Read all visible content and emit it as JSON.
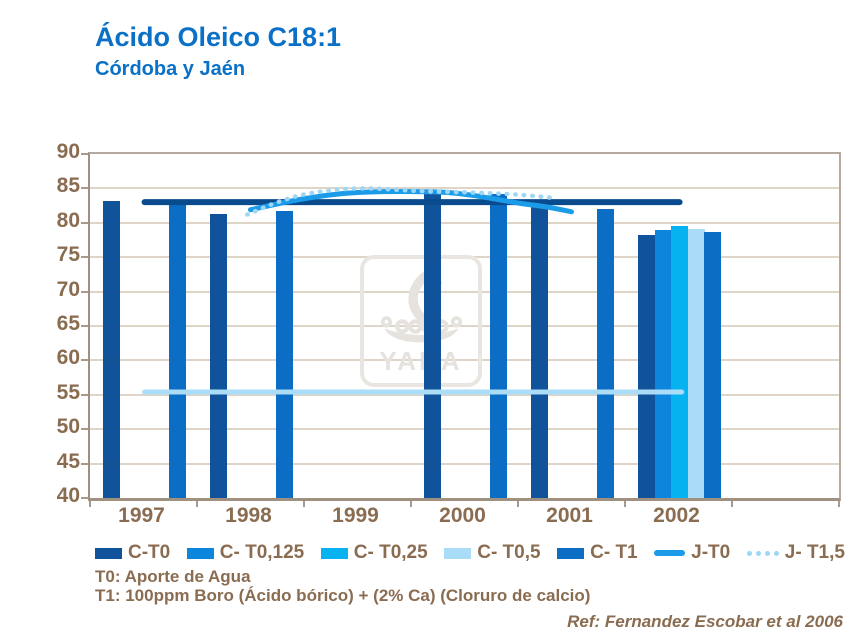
{
  "header": {
    "title": "Ácido Oleico C18:1",
    "subtitle": "Córdoba y Jaén"
  },
  "watermark": {
    "label": "YARA"
  },
  "footnotes": {
    "line1": "T0: Aporte de Agua",
    "line2": "T1: 100ppm Boro (Ácido bórico) + (2% Ca) (Cloruro de calcio)"
  },
  "reference_text": "Ref: Fernandez Escobar et al 2006",
  "colors": {
    "title_blue": "#0a71c6",
    "text_brown": "#8a6c51",
    "axis": "#a0907f",
    "grid": "#ded4c8"
  },
  "chart_data": {
    "type": "bar",
    "title": "Ácido Oleico C18:1",
    "subtitle": "Córdoba y Jaén",
    "categories": [
      "1997",
      "1998",
      "1999",
      "2000",
      "2001",
      "2002"
    ],
    "ylim": [
      40,
      90
    ],
    "y_ticks": [
      90,
      85,
      80,
      75,
      70,
      65,
      60,
      55,
      50,
      45,
      40
    ],
    "grid": true,
    "legend_position": "bottom",
    "series": [
      {
        "name": "C-T0",
        "type": "bar",
        "slot": 0,
        "color": "#10539a",
        "values": {
          "1997": 83.1,
          "1998": 81.3,
          "2000": 84.5,
          "2001": 82.4,
          "2002": 78.2
        }
      },
      {
        "name": "C- T0,125",
        "type": "bar",
        "slot": 1,
        "color": "#0c86dd",
        "values": {
          "2002": 78.9
        }
      },
      {
        "name": "C- T0,25",
        "type": "bar",
        "slot": 2,
        "color": "#06b2ef",
        "values": {
          "2002": 79.5
        }
      },
      {
        "name": "C- T0,5",
        "type": "bar",
        "slot": 3,
        "color": "#a9dcf7",
        "values": {
          "2002": 79.1
        }
      },
      {
        "name": "C- T1",
        "type": "bar",
        "slot": 4,
        "color": "#0c6dc4",
        "values": {
          "1997": 83.0,
          "1998": 81.7,
          "2000": 84.2,
          "2001": 82.0,
          "2002": 78.6
        }
      },
      {
        "name": "J-T0",
        "type": "line",
        "style": "solid",
        "color": "#1c9ce8",
        "stroke": 5,
        "points": [
          [
            1998.0,
            81.9
          ],
          [
            1998.5,
            83.5
          ],
          [
            1999.0,
            84.4
          ],
          [
            1999.7,
            84.5
          ],
          [
            2000.07,
            84.0
          ],
          [
            2000.49,
            82.9
          ],
          [
            2000.77,
            82.3
          ],
          [
            2001.0,
            81.6
          ]
        ]
      },
      {
        "name": "J- T1,5",
        "type": "line",
        "style": "dotted",
        "color": "#9ed7f5",
        "stroke": 4.5,
        "points": [
          [
            1997.97,
            81.2
          ],
          [
            1998.29,
            83.2
          ],
          [
            1998.6,
            84.4
          ],
          [
            1999.04,
            85.0
          ],
          [
            1999.6,
            84.6
          ],
          [
            2000.07,
            84.4
          ],
          [
            2000.49,
            84.1
          ],
          [
            2000.84,
            83.6
          ]
        ]
      }
    ],
    "reference_lines": [
      {
        "value": 83.0,
        "color": "#0a4b8e",
        "stroke": 6,
        "x_from": 1997.01,
        "x_to": 2002.01
      },
      {
        "value": 55.4,
        "color": "#abdcf8",
        "stroke": 5,
        "x_from": 1997.01,
        "x_to": 2002.03
      }
    ],
    "legend": [
      {
        "label": "C-T0",
        "swatch": "square",
        "color": "#10539a"
      },
      {
        "label": "C- T0,125",
        "swatch": "square",
        "color": "#0c86dd"
      },
      {
        "label": "C- T0,25",
        "swatch": "square",
        "color": "#06b2ef"
      },
      {
        "label": "C- T0,5",
        "swatch": "square",
        "color": "#a9dcf7"
      },
      {
        "label": "C- T1",
        "swatch": "square",
        "color": "#0c6dc4"
      },
      {
        "label": "J-T0",
        "swatch": "line",
        "color": "#1c9ce8"
      },
      {
        "label": "J- T1,5",
        "swatch": "dots",
        "color": "#9ed7f5"
      }
    ]
  }
}
